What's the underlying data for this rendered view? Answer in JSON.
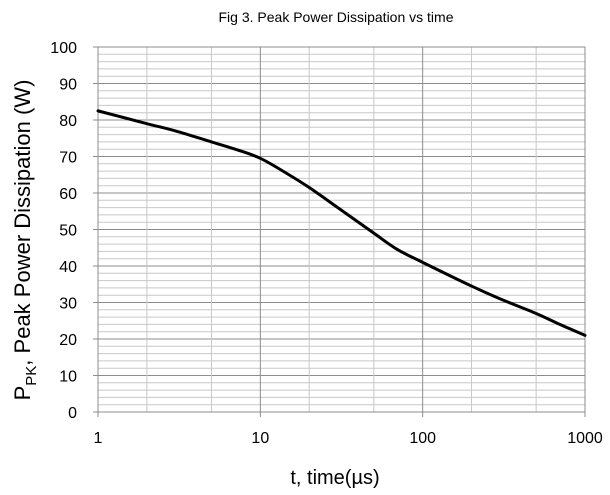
{
  "chart_data": {
    "type": "line",
    "title": "Fig 3. Peak Power Dissipation vs time",
    "xlabel": "t, time(µs)",
    "ylabel": {
      "prefix": "P",
      "subscript": "PK",
      "rest": ", Peak Power Dissipation (W)"
    },
    "x_scale": "log",
    "xlim": [
      1,
      1000
    ],
    "ylim": [
      0,
      100
    ],
    "x_ticks": [
      "1",
      "10",
      "100",
      "1000"
    ],
    "y_ticks": [
      "0",
      "10",
      "20",
      "30",
      "40",
      "50",
      "60",
      "70",
      "80",
      "90",
      "100"
    ],
    "grid": true,
    "series": [
      {
        "x": [
          1,
          2,
          3,
          5,
          7,
          10,
          15,
          20,
          30,
          50,
          70,
          100,
          200,
          300,
          500,
          700,
          1000
        ],
        "y": [
          82.5,
          79,
          77,
          74,
          72,
          69.5,
          65,
          61.5,
          56,
          49,
          44.5,
          41,
          34.5,
          31,
          27,
          24,
          21
        ]
      }
    ],
    "colors": {
      "line": "#000000",
      "grid_major": "#8c8c8c",
      "grid_minor": "#c8c8c8",
      "frame": "#8c8c8c"
    }
  }
}
